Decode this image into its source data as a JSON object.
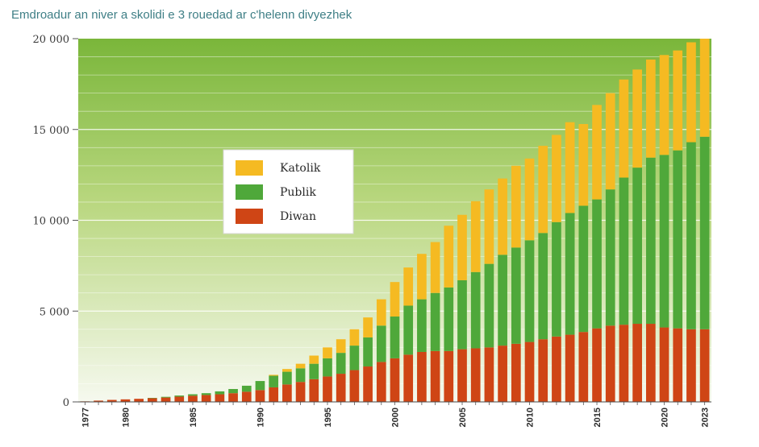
{
  "chart_data": {
    "type": "bar",
    "stacked": true,
    "title": "Emdroadur an niver a skolidi e 3 rouedad ar c'helenn divyezhek",
    "xlabel": "",
    "ylabel": "",
    "ylim": [
      0,
      20000
    ],
    "y_ticks": [
      0,
      5000,
      10000,
      15000,
      20000
    ],
    "y_tick_labels": [
      "0",
      "5 000",
      "10 000",
      "15 000",
      "20 000"
    ],
    "x_tick_labels": [
      "1977",
      "1980",
      "1985",
      "1990",
      "1995",
      "2000",
      "2005",
      "2010",
      "2015",
      "2020",
      "2023"
    ],
    "legend_position": "upper-left",
    "categories": [
      "1977",
      "1978",
      "1979",
      "1980",
      "1981",
      "1982",
      "1983",
      "1984",
      "1985",
      "1986",
      "1987",
      "1988",
      "1989",
      "1990",
      "1991",
      "1992",
      "1993",
      "1994",
      "1995",
      "1996",
      "1997",
      "1998",
      "1999",
      "2000",
      "2001",
      "2002",
      "2003",
      "2004",
      "2005",
      "2006",
      "2007",
      "2008",
      "2009",
      "2010",
      "2011",
      "2012",
      "2013",
      "2014",
      "2015",
      "2016",
      "2017",
      "2018",
      "2019",
      "2020",
      "2021",
      "2022",
      "2023"
    ],
    "series": [
      {
        "name": "Diwan",
        "color": "#cf4515",
        "values": [
          30,
          70,
          110,
          140,
          170,
          200,
          240,
          290,
          340,
          380,
          420,
          480,
          560,
          650,
          800,
          960,
          1100,
          1250,
          1400,
          1550,
          1750,
          1950,
          2200,
          2400,
          2600,
          2750,
          2800,
          2800,
          2900,
          2950,
          3000,
          3100,
          3200,
          3300,
          3450,
          3600,
          3700,
          3850,
          4050,
          4200,
          4250,
          4300,
          4300,
          4100,
          4050,
          4000,
          4000
        ]
      },
      {
        "name": "Publik",
        "color": "#4fa83a",
        "values": [
          0,
          0,
          0,
          0,
          0,
          20,
          40,
          60,
          80,
          100,
          160,
          230,
          330,
          500,
          640,
          700,
          750,
          850,
          1000,
          1150,
          1350,
          1600,
          2000,
          2300,
          2700,
          2900,
          3200,
          3500,
          3800,
          4200,
          4600,
          5000,
          5300,
          5600,
          5850,
          6300,
          6700,
          6950,
          7100,
          7500,
          8100,
          8600,
          9150,
          9500,
          9800,
          10300,
          10600
        ]
      },
      {
        "name": "Katolik",
        "color": "#f5ba22",
        "values": [
          0,
          0,
          0,
          0,
          0,
          0,
          0,
          0,
          0,
          0,
          0,
          0,
          0,
          0,
          50,
          150,
          250,
          450,
          600,
          750,
          900,
          1100,
          1450,
          1900,
          2100,
          2500,
          2800,
          3400,
          3600,
          3900,
          4100,
          4200,
          4500,
          4500,
          4800,
          4800,
          5000,
          4500,
          5200,
          5300,
          5400,
          5400,
          5400,
          5500,
          5500,
          5500,
          5400
        ]
      }
    ]
  }
}
